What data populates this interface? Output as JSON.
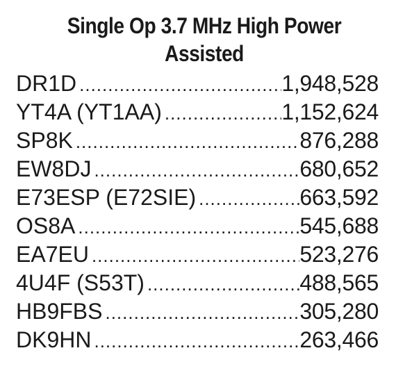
{
  "title": {
    "line1": "Single Op 3.7 MHz High Power",
    "line2": "Assisted"
  },
  "results": [
    {
      "call": "DR1D",
      "score": "1,948,528"
    },
    {
      "call": "YT4A (YT1AA)",
      "score": "1,152,624"
    },
    {
      "call": "SP8K",
      "score": "876,288"
    },
    {
      "call": "EW8DJ",
      "score": "680,652"
    },
    {
      "call": "E73ESP (E72SIE)",
      "score": "663,592"
    },
    {
      "call": "OS8A",
      "score": "545,688"
    },
    {
      "call": "EA7EU",
      "score": "523,276"
    },
    {
      "call": "4U4F (S53T)",
      "score": "488,565"
    },
    {
      "call": "HB9FBS",
      "score": "305,280"
    },
    {
      "call": "DK9HN",
      "score": "263,466"
    }
  ]
}
